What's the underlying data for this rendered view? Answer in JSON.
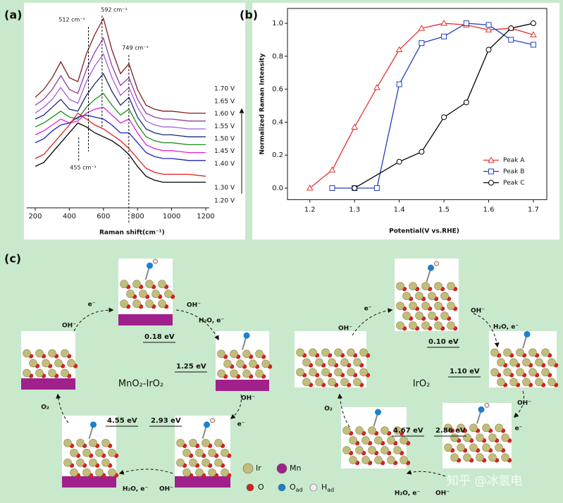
{
  "chart_data": [
    {
      "type": "line",
      "label": "(a)",
      "xlabel": "Raman shift(cm⁻¹)",
      "x": [
        200,
        250,
        300,
        350,
        400,
        450,
        500,
        550,
        600,
        650,
        700,
        750,
        800,
        850,
        900,
        950,
        1000,
        1100,
        1200
      ],
      "xlim": [
        150,
        1220
      ],
      "xticks": [
        200,
        400,
        600,
        800,
        1000,
        1200
      ],
      "ylim": [
        0,
        100
      ],
      "series": [
        {
          "name": "1.70 V",
          "color": "#7b1f1f",
          "values": [
            56,
            60,
            66,
            74,
            66,
            64,
            78,
            88,
            96,
            80,
            68,
            73,
            60,
            52,
            50,
            49,
            49,
            48,
            48
          ]
        },
        {
          "name": "1.65 V",
          "color": "#8a3fa0",
          "values": [
            52,
            55,
            60,
            67,
            60,
            58,
            70,
            79,
            86,
            72,
            62,
            66,
            55,
            48,
            46,
            45,
            45,
            44,
            44
          ]
        },
        {
          "name": "1.60 V",
          "color": "#a060d8",
          "values": [
            48,
            51,
            55,
            61,
            55,
            53,
            64,
            72,
            78,
            66,
            57,
            61,
            51,
            44,
            42,
            41,
            41,
            40,
            40
          ]
        },
        {
          "name": "1.55 V",
          "color": "#1a2a6c",
          "values": [
            45,
            47,
            51,
            55,
            50,
            49,
            57,
            63,
            68,
            59,
            52,
            56,
            46,
            40,
            38,
            37,
            37,
            36,
            36
          ]
        },
        {
          "name": "1.50 V",
          "color": "#1a8a1a",
          "values": [
            41,
            43,
            46,
            49,
            46,
            45,
            51,
            55,
            58,
            52,
            47,
            50,
            42,
            36,
            34,
            33,
            33,
            32,
            32
          ]
        },
        {
          "name": "1.45 V",
          "color": "#e020e0",
          "values": [
            37,
            39,
            42,
            45,
            43,
            44,
            48,
            50,
            51,
            47,
            43,
            45,
            38,
            32,
            30,
            29,
            29,
            28,
            28
          ]
        },
        {
          "name": "1.40 V",
          "color": "#2020c0",
          "values": [
            33,
            35,
            39,
            42,
            43,
            46,
            47,
            46,
            45,
            42,
            38,
            38,
            33,
            28,
            26,
            25,
            25,
            24,
            24
          ]
        },
        {
          "name": "1.30 V",
          "color": "#e02020",
          "values": [
            25,
            27,
            32,
            37,
            42,
            48,
            45,
            42,
            40,
            37,
            34,
            30,
            25,
            20,
            18,
            17,
            17,
            17,
            16
          ]
        },
        {
          "name": "1.20 V",
          "color": "#000000",
          "values": [
            21,
            23,
            28,
            33,
            38,
            43,
            41,
            38,
            36,
            34,
            31,
            27,
            21,
            16,
            14,
            13,
            13,
            13,
            13
          ]
        }
      ],
      "annotations": [
        {
          "text": "512 cm⁻¹",
          "x": 512
        },
        {
          "text": "592 cm⁻¹",
          "x": 592
        },
        {
          "text": "749 cm⁻¹",
          "x": 749
        },
        {
          "text": "455 cm⁻¹",
          "x": 455
        }
      ]
    },
    {
      "type": "line",
      "label": "(b)",
      "xlabel": "Potential(V vs.RHE)",
      "ylabel": "Normalized Raman Intensity",
      "xlim": [
        1.15,
        1.73
      ],
      "xticks": [
        1.2,
        1.3,
        1.4,
        1.5,
        1.6,
        1.7
      ],
      "ylim": [
        -0.07,
        1.09
      ],
      "yticks": [
        {
          "value": 0,
          "label": "0.0"
        },
        0.2,
        0.4,
        0.6,
        0.8,
        {
          "value": 1,
          "label": "1.0"
        }
      ],
      "legend": "lower right",
      "series": [
        {
          "name": "Peak A",
          "color": "#e83030",
          "marker": "triangle",
          "x": [
            1.2,
            1.25,
            1.3,
            1.35,
            1.4,
            1.45,
            1.5,
            1.55,
            1.6,
            1.65,
            1.7
          ],
          "values": [
            0,
            0.11,
            0.37,
            0.61,
            0.84,
            0.97,
            1.0,
            0.99,
            0.96,
            0.97,
            0.93
          ]
        },
        {
          "name": "Peak B",
          "color": "#2040c0",
          "marker": "square",
          "x": [
            1.25,
            1.3,
            1.35,
            1.4,
            1.45,
            1.5,
            1.55,
            1.6,
            1.65,
            1.7
          ],
          "values": [
            0,
            0,
            0,
            0.63,
            0.88,
            0.92,
            1.0,
            0.99,
            0.9,
            0.87
          ]
        },
        {
          "name": "Peak C",
          "color": "#000000",
          "marker": "circle",
          "x": [
            1.3,
            1.4,
            1.45,
            1.5,
            1.55,
            1.6,
            1.65,
            1.7
          ],
          "values": [
            0,
            0.16,
            0.22,
            0.43,
            0.52,
            0.84,
            0.97,
            1.0
          ]
        }
      ]
    }
  ],
  "diagram": {
    "label": "(c)",
    "left": {
      "title": "MnO₂-IrO₂",
      "energies": [
        "0.18 eV",
        "1.25 eV",
        "2.93 eV",
        "4.55 eV"
      ],
      "texts": [
        "e⁻",
        "OH⁻",
        "OH⁻",
        "H₂O, e⁻",
        "OH⁻",
        "e⁻",
        "H₂O, e⁻",
        "OH⁻",
        "O₂"
      ]
    },
    "right": {
      "title": "IrO₂",
      "energies": [
        "0.10 eV",
        "1.10 eV",
        "2.86 eV",
        "4.67 eV"
      ],
      "texts": [
        "e⁻",
        "OH⁻",
        "OH⁻",
        "H₂O, e⁻",
        "OH⁻",
        "e⁻",
        "H₂O, e⁻",
        "OH⁻",
        "O₂"
      ]
    },
    "legend": [
      {
        "base": "Ir"
      },
      {
        "base": "Mn"
      },
      {
        "base": "O"
      },
      {
        "base": "O",
        "sub": "ad"
      },
      {
        "base": "H",
        "sub": "ad"
      }
    ],
    "watermark": "知乎 @冰氢电"
  }
}
